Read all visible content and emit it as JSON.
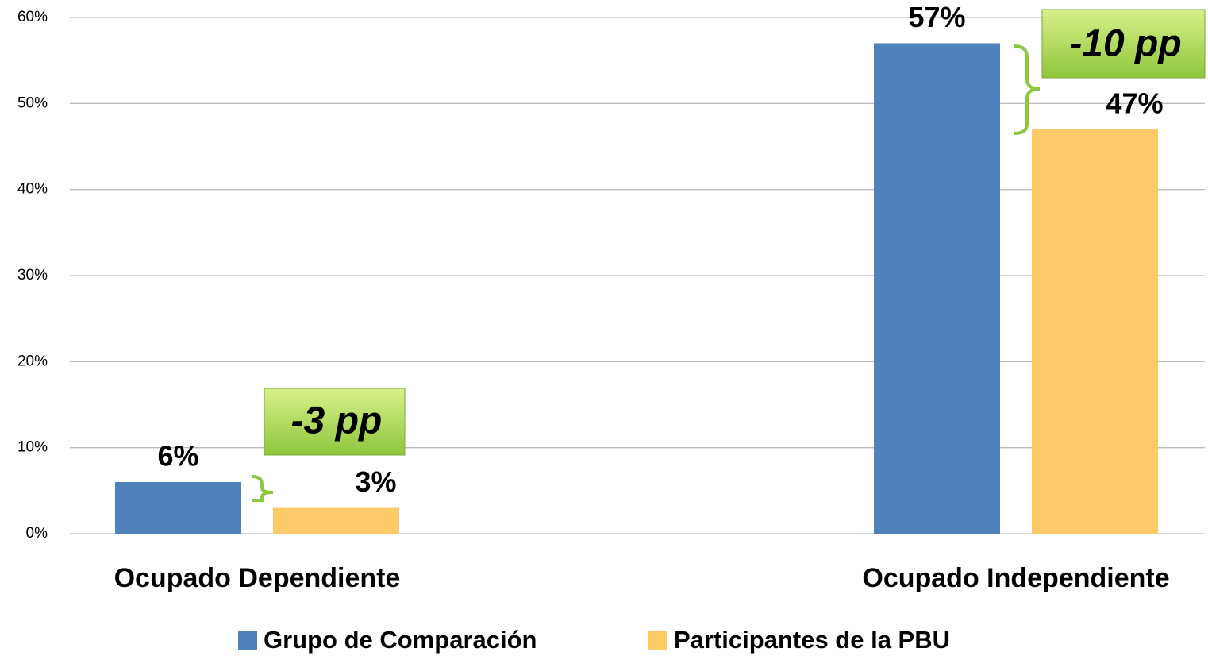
{
  "chart_data": {
    "type": "bar",
    "categories": [
      "Ocupado Dependiente",
      "Ocupado Independiente"
    ],
    "series": [
      {
        "name": "Grupo de Comparación",
        "color": "#4f81bd",
        "values": [
          6,
          57
        ],
        "value_labels": [
          "6%",
          "57%"
        ]
      },
      {
        "name": "Participantes de la PBU",
        "color": "#fdca68",
        "values": [
          3,
          47
        ],
        "value_labels": [
          "3%",
          "47%"
        ]
      }
    ],
    "ylim": [
      0,
      60
    ],
    "yticks": [
      {
        "value": 0,
        "label": "0%"
      },
      {
        "value": 10,
        "label": "10%"
      },
      {
        "value": 20,
        "label": "20%"
      },
      {
        "value": 30,
        "label": "30%"
      },
      {
        "value": 40,
        "label": "40%"
      },
      {
        "value": 50,
        "label": "50%"
      },
      {
        "value": 60,
        "label": "60%"
      }
    ],
    "grid": true,
    "legend": "bottom",
    "annotations": [
      "-3 pp",
      "-10 pp"
    ]
  }
}
